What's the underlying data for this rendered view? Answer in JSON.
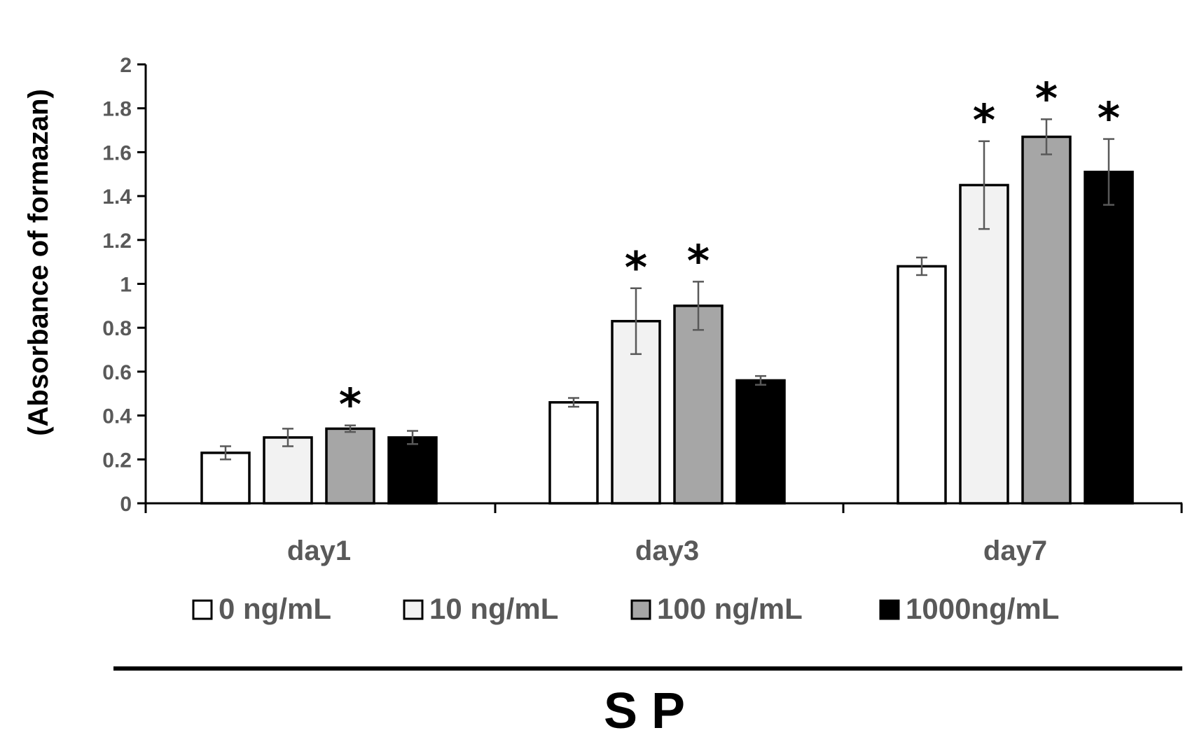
{
  "chart_data": {
    "type": "bar",
    "title": "S P",
    "xlabel": "",
    "ylabel": "(Absorbance of formazan)",
    "ylim": [
      0,
      2
    ],
    "yticks": [
      "0",
      "0.2",
      "0.4",
      "0.6",
      "0.8",
      "1",
      "1.2",
      "1.4",
      "1.6",
      "1.8",
      "2"
    ],
    "categories": [
      "day1",
      "day3",
      "day7"
    ],
    "series": [
      {
        "name": "0 ng/mL",
        "color": "#ffffff",
        "values": [
          0.23,
          0.46,
          1.08
        ],
        "errors": [
          0.03,
          0.02,
          0.04
        ],
        "significant": [
          false,
          false,
          false
        ]
      },
      {
        "name": "10 ng/mL",
        "color": "#f2f2f2",
        "values": [
          0.3,
          0.83,
          1.45
        ],
        "errors": [
          0.04,
          0.15,
          0.2
        ],
        "significant": [
          false,
          true,
          true
        ]
      },
      {
        "name": "100 ng/mL",
        "color": "#a6a6a6",
        "values": [
          0.34,
          0.9,
          1.67
        ],
        "errors": [
          0.015,
          0.11,
          0.08
        ],
        "significant": [
          true,
          true,
          true
        ]
      },
      {
        "name": "1000ng/mL",
        "color": "#000000",
        "values": [
          0.3,
          0.56,
          1.51
        ],
        "errors": [
          0.03,
          0.02,
          0.15
        ],
        "significant": [
          false,
          false,
          true
        ]
      }
    ],
    "significance_marker": "*",
    "legend_position": "bottom",
    "grid": false
  }
}
